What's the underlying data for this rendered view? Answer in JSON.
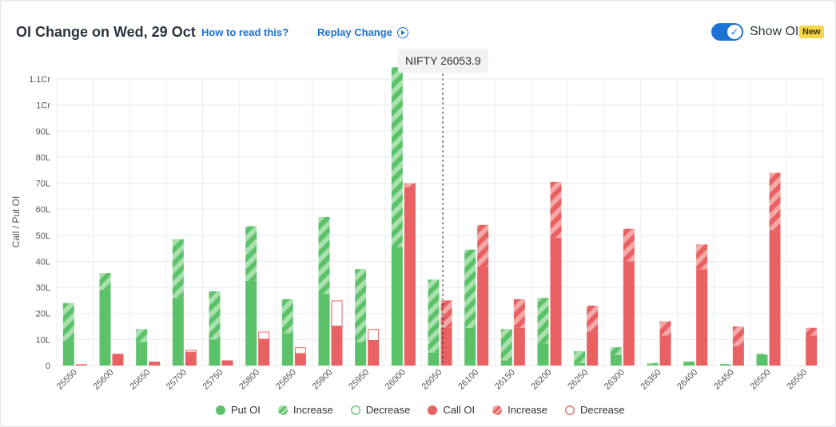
{
  "header": {
    "title": "OI Change on Wed, 29 Oct",
    "how_to_read": "How to read this?",
    "replay": "Replay Change",
    "show_oi": "Show OI",
    "badge": "New"
  },
  "spot_label": "NIFTY 26053.9",
  "colors": {
    "put": "#5cc26a",
    "put_light": "#a8e0ae",
    "call": "#e96162",
    "call_light": "#f4a8a8",
    "accent": "#1d72d6"
  },
  "legend": {
    "put_oi": "Put OI",
    "put_increase": "Increase",
    "put_decrease": "Decrease",
    "call_oi": "Call OI",
    "call_increase": "Increase",
    "call_decrease": "Decrease"
  },
  "chart_data": {
    "type": "bar",
    "ylabel": "Call / Put OI",
    "ylim": [
      0,
      11000000
    ],
    "yticks": [
      {
        "v": 0,
        "label": "0"
      },
      {
        "v": 1000000,
        "label": "10L"
      },
      {
        "v": 2000000,
        "label": "20L"
      },
      {
        "v": 3000000,
        "label": "30L"
      },
      {
        "v": 4000000,
        "label": "40L"
      },
      {
        "v": 5000000,
        "label": "50L"
      },
      {
        "v": 6000000,
        "label": "60L"
      },
      {
        "v": 7000000,
        "label": "70L"
      },
      {
        "v": 8000000,
        "label": "80L"
      },
      {
        "v": 9000000,
        "label": "90L"
      },
      {
        "v": 10000000,
        "label": "1Cr"
      },
      {
        "v": 11000000,
        "label": "1.1Cr"
      }
    ],
    "categories": [
      "25550",
      "25600",
      "25650",
      "25700",
      "25750",
      "25800",
      "25850",
      "25900",
      "25950",
      "26000",
      "26050",
      "26100",
      "26150",
      "26200",
      "26250",
      "26300",
      "26350",
      "26400",
      "26450",
      "26500",
      "26550"
    ],
    "spot": 26053.9,
    "grid": true,
    "put_oi": [
      950000,
      2900000,
      900000,
      2600000,
      1000000,
      3250000,
      1250000,
      2750000,
      900000,
      4550000,
      500000,
      1450000,
      200000,
      850000,
      100000,
      400000,
      50000,
      150000,
      30000,
      400000,
      0
    ],
    "put_increase": [
      1450000,
      650000,
      500000,
      2250000,
      1850000,
      2100000,
      1300000,
      2950000,
      2800000,
      6900000,
      2800000,
      3000000,
      1200000,
      1750000,
      450000,
      300000,
      50000,
      0,
      30000,
      50000,
      0
    ],
    "put_decrease": [
      0,
      0,
      0,
      0,
      0,
      0,
      0,
      0,
      0,
      0,
      0,
      0,
      0,
      0,
      0,
      0,
      0,
      0,
      0,
      0,
      0
    ],
    "call_oi": [
      50000,
      450000,
      150000,
      500000,
      200000,
      1000000,
      450000,
      1500000,
      950000,
      6850000,
      1450000,
      3800000,
      1450000,
      4900000,
      1300000,
      4000000,
      1150000,
      3700000,
      750000,
      5200000,
      1150000
    ],
    "call_increase": [
      0,
      0,
      0,
      0,
      0,
      0,
      0,
      0,
      0,
      150000,
      1050000,
      1600000,
      1100000,
      2150000,
      1000000,
      1250000,
      550000,
      950000,
      750000,
      2200000,
      300000
    ],
    "call_decrease": [
      0,
      0,
      0,
      100000,
      0,
      300000,
      250000,
      1000000,
      450000,
      0,
      0,
      0,
      0,
      0,
      0,
      0,
      0,
      0,
      0,
      0,
      0
    ]
  }
}
